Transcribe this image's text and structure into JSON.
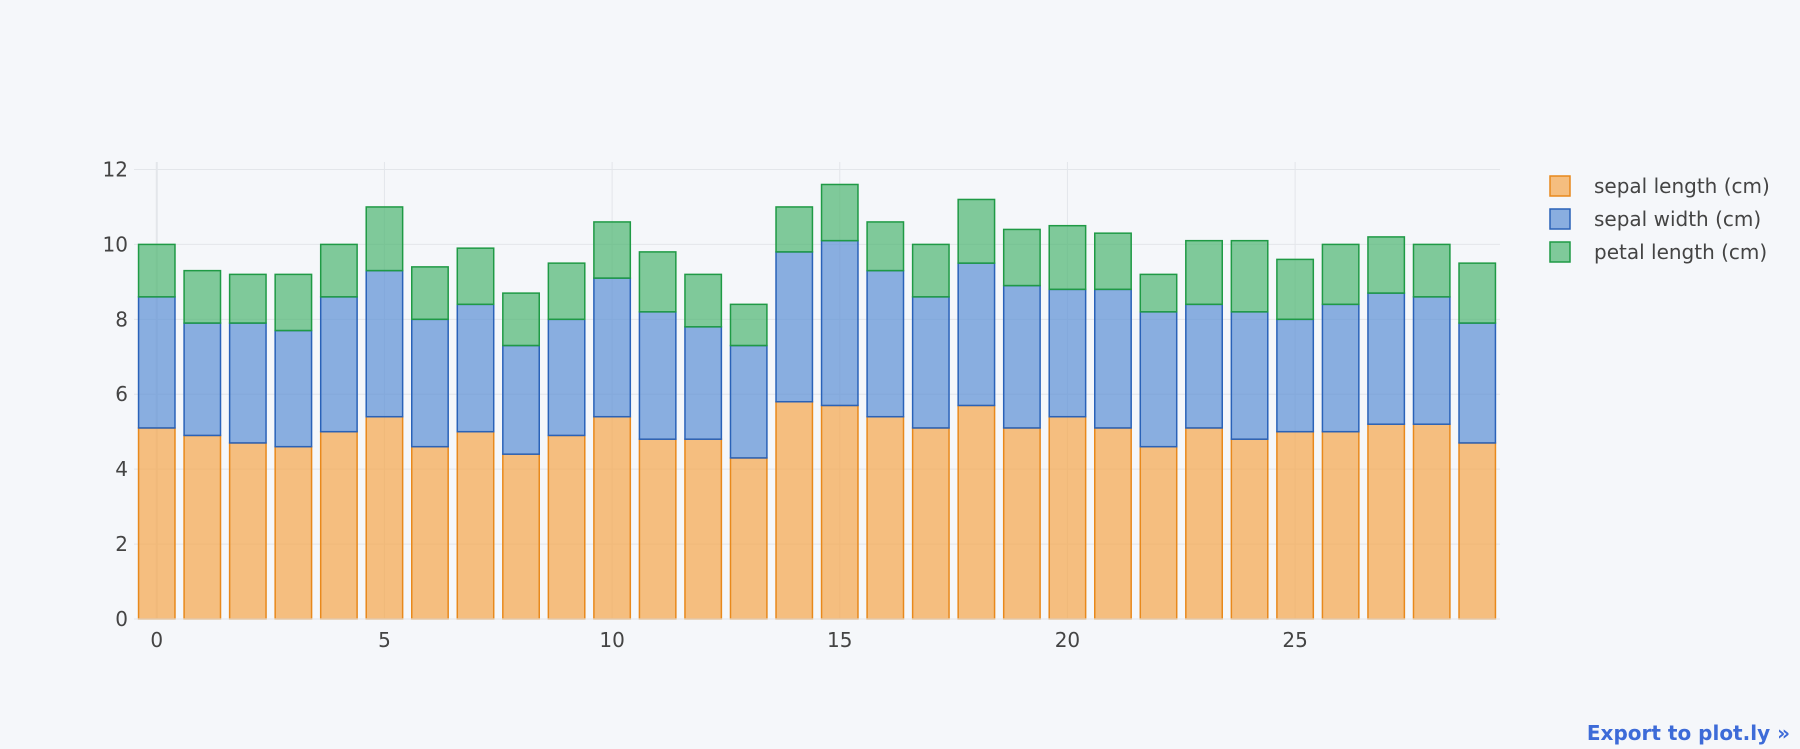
{
  "chart_data": {
    "type": "bar",
    "barmode": "stack",
    "x": [
      0,
      1,
      2,
      3,
      4,
      5,
      6,
      7,
      8,
      9,
      10,
      11,
      12,
      13,
      14,
      15,
      16,
      17,
      18,
      19,
      20,
      21,
      22,
      23,
      24,
      25,
      26,
      27,
      28,
      29
    ],
    "series": [
      {
        "name": "sepal length (cm)",
        "color": "#f5a54a",
        "values": [
          5.1,
          4.9,
          4.7,
          4.6,
          5.0,
          5.4,
          4.6,
          5.0,
          4.4,
          4.9,
          5.4,
          4.8,
          4.8,
          4.3,
          5.8,
          5.7,
          5.4,
          5.1,
          5.7,
          5.1,
          5.4,
          5.1,
          4.6,
          5.1,
          4.8,
          5.0,
          5.0,
          5.2,
          5.2,
          4.7
        ]
      },
      {
        "name": "sepal width (cm)",
        "color": "#5b8fd4",
        "values": [
          3.5,
          3.0,
          3.2,
          3.1,
          3.6,
          3.9,
          3.4,
          3.4,
          2.9,
          3.1,
          3.7,
          3.4,
          3.0,
          3.0,
          4.0,
          4.4,
          3.9,
          3.5,
          3.8,
          3.8,
          3.4,
          3.7,
          3.6,
          3.3,
          3.4,
          3.0,
          3.4,
          3.5,
          3.4,
          3.2
        ]
      },
      {
        "name": "petal length (cm)",
        "color": "#4db571",
        "values": [
          1.4,
          1.4,
          1.3,
          1.5,
          1.4,
          1.7,
          1.4,
          1.5,
          1.4,
          1.5,
          1.5,
          1.6,
          1.4,
          1.1,
          1.2,
          1.5,
          1.3,
          1.4,
          1.7,
          1.5,
          1.7,
          1.5,
          1.0,
          1.7,
          1.9,
          1.6,
          1.6,
          1.5,
          1.4,
          1.6
        ]
      }
    ],
    "xticks": [
      0,
      5,
      10,
      15,
      20,
      25
    ],
    "yticks": [
      0,
      2,
      4,
      6,
      8,
      10,
      12
    ],
    "xlim": [
      -0.5,
      29.5
    ],
    "ylim": [
      0,
      12.2
    ],
    "grid": true,
    "legend_position": "top-right"
  },
  "colors": {
    "background": "#f5f7fa",
    "grid": "#e3e6ea",
    "sepal_length_line": "#e8891c",
    "sepal_width_line": "#2a62b8",
    "petal_length_line": "#1f9a45"
  },
  "export_link": "Export to plot.ly »"
}
